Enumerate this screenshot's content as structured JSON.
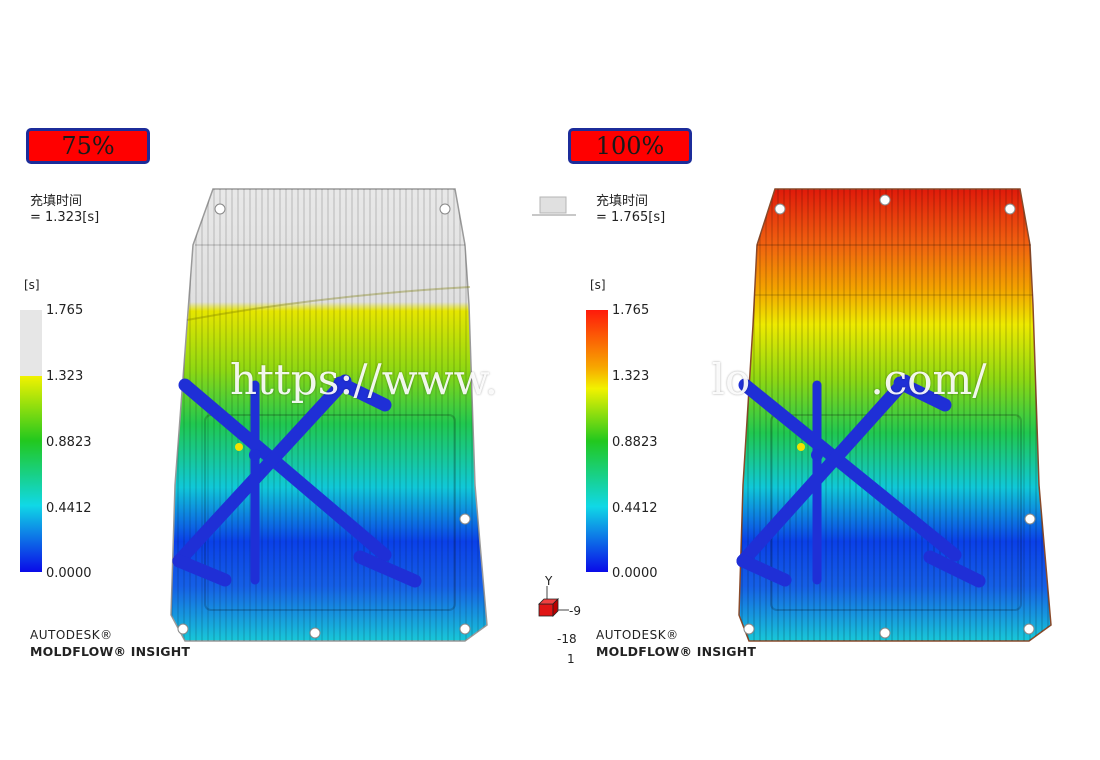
{
  "left": {
    "badge": "75%",
    "result_name": "充填时间",
    "result_value": "= 1.323[s]",
    "unit": "[s]",
    "scale_labels": [
      "1.765",
      "1.323",
      "0.8823",
      "0.4412",
      "0.0000"
    ],
    "fill_fraction": 0.75,
    "brand_line1": "AUTODESK®",
    "brand_line2": "MOLDFLOW® INSIGHT"
  },
  "right": {
    "badge": "100%",
    "result_name": "充填时间",
    "result_value": "= 1.765[s]",
    "unit": "[s]",
    "scale_labels": [
      "1.765",
      "1.323",
      "0.8823",
      "0.4412",
      "0.0000"
    ],
    "fill_fraction": 1.0,
    "brand_line1": "AUTODESK®",
    "brand_line2": "MOLDFLOW® INSIGHT"
  },
  "triad": {
    "axis_label": "Y",
    "readout_1": "-9",
    "readout_2": "-18",
    "readout_3": "1"
  },
  "watermark": "https://www.                lo         .com/",
  "colors": {
    "badge_fill": "#ff0000",
    "badge_border": "#1c2c9a",
    "runner": "#1f2fd6",
    "unfilled": "#e6e6e6"
  }
}
